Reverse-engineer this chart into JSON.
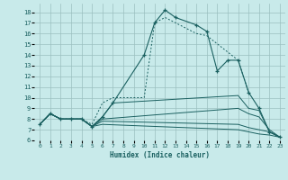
{
  "xlabel": "Humidex (Indice chaleur)",
  "bg_color": "#c8eaea",
  "grid_color": "#9bbfbf",
  "line_color": "#1a6060",
  "xlim": [
    -0.5,
    23.5
  ],
  "ylim": [
    6,
    18.8
  ],
  "xticks": [
    0,
    1,
    2,
    3,
    4,
    5,
    6,
    7,
    8,
    9,
    10,
    11,
    12,
    13,
    14,
    15,
    16,
    17,
    18,
    19,
    20,
    21,
    22,
    23
  ],
  "yticks": [
    6,
    7,
    8,
    9,
    10,
    11,
    12,
    13,
    14,
    15,
    16,
    17,
    18
  ],
  "main_x": [
    0,
    1,
    2,
    3,
    4,
    5,
    6,
    7,
    10,
    11,
    12,
    13,
    15,
    16,
    17,
    18,
    19,
    20,
    21,
    22,
    23
  ],
  "main_y": [
    7.5,
    8.5,
    8.0,
    8.0,
    8.0,
    7.3,
    8.2,
    9.5,
    14.0,
    17.0,
    18.2,
    17.5,
    16.8,
    16.2,
    12.5,
    13.5,
    13.5,
    10.5,
    9.0,
    6.8,
    6.3
  ],
  "dot_x": [
    0,
    1,
    2,
    3,
    4,
    5,
    6,
    7,
    10,
    11,
    12,
    13,
    15,
    16,
    19,
    20
  ],
  "dot_y": [
    7.5,
    8.5,
    8.0,
    8.0,
    8.0,
    7.5,
    9.5,
    10.0,
    10.0,
    17.0,
    17.5,
    17.0,
    16.0,
    15.8,
    13.5,
    10.5
  ],
  "line2_x": [
    0,
    1,
    2,
    3,
    4,
    5,
    6,
    7,
    19,
    20,
    21,
    22,
    23
  ],
  "line2_y": [
    7.5,
    8.5,
    8.0,
    8.0,
    8.0,
    7.3,
    8.2,
    9.5,
    10.2,
    9.0,
    8.8,
    6.8,
    6.3
  ],
  "line3_x": [
    0,
    1,
    2,
    3,
    4,
    5,
    6,
    19,
    20,
    21,
    22,
    23
  ],
  "line3_y": [
    7.5,
    8.5,
    8.0,
    8.0,
    8.0,
    7.3,
    8.0,
    9.0,
    8.5,
    8.2,
    7.0,
    6.3
  ],
  "line4_x": [
    0,
    1,
    2,
    3,
    4,
    5,
    6,
    19,
    20,
    21,
    22,
    23
  ],
  "line4_y": [
    7.5,
    8.5,
    8.0,
    8.0,
    8.0,
    7.3,
    7.8,
    7.5,
    7.2,
    7.0,
    6.8,
    6.3
  ],
  "line5_x": [
    0,
    1,
    2,
    3,
    4,
    5,
    6,
    19,
    20,
    21,
    22,
    23
  ],
  "line5_y": [
    7.5,
    8.5,
    8.0,
    8.0,
    8.0,
    7.3,
    7.5,
    7.0,
    6.8,
    6.6,
    6.5,
    6.3
  ]
}
